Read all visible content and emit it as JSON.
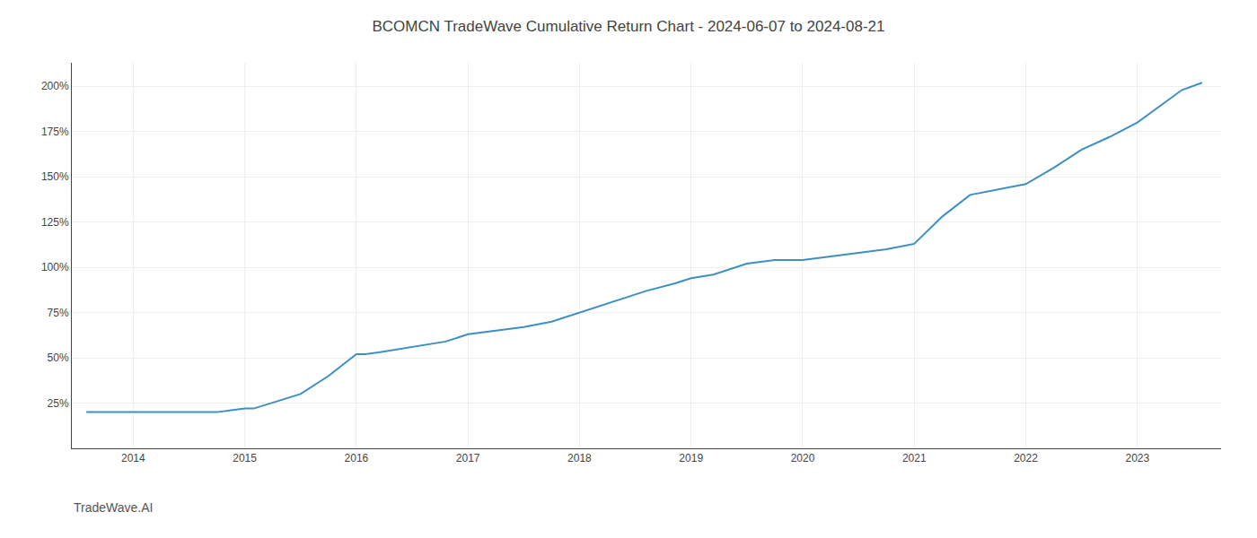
{
  "chart_data": {
    "type": "line",
    "title": "BCOMCN TradeWave Cumulative Return Chart - 2024-06-07 to 2024-08-21",
    "x": [
      2013.58,
      2014.0,
      2014.4,
      2014.75,
      2015.0,
      2015.08,
      2015.5,
      2015.75,
      2016.0,
      2016.08,
      2016.2,
      2016.4,
      2016.6,
      2016.8,
      2017.0,
      2017.25,
      2017.5,
      2017.75,
      2018.0,
      2018.15,
      2018.4,
      2018.6,
      2018.85,
      2019.0,
      2019.2,
      2019.4,
      2019.5,
      2019.75,
      2020.0,
      2020.25,
      2020.5,
      2020.75,
      2021.0,
      2021.25,
      2021.5,
      2021.75,
      2022.0,
      2022.25,
      2022.5,
      2022.75,
      2023.0,
      2023.4,
      2023.58
    ],
    "values": [
      20,
      20,
      20,
      20,
      22,
      22,
      30,
      40,
      52,
      52,
      53,
      55,
      57,
      59,
      63,
      65,
      67,
      70,
      75,
      78,
      83,
      87,
      91,
      94,
      96,
      100,
      102,
      104,
      104,
      106,
      108,
      110,
      113,
      128,
      140,
      143,
      146,
      155,
      165,
      172,
      180,
      198,
      202
    ],
    "color": "#3d8fc4",
    "xlim": [
      2013.45,
      2023.75
    ],
    "ylim": [
      0,
      213
    ],
    "xticks": [
      2014,
      2015,
      2016,
      2017,
      2018,
      2019,
      2020,
      2021,
      2022,
      2023
    ],
    "yticks": [
      {
        "value": 25,
        "label": "25%"
      },
      {
        "value": 50,
        "label": "50%"
      },
      {
        "value": 75,
        "label": "75%"
      },
      {
        "value": 100,
        "label": "100%"
      },
      {
        "value": 125,
        "label": "125%"
      },
      {
        "value": 150,
        "label": "150%"
      },
      {
        "value": 175,
        "label": "175%"
      },
      {
        "value": 200,
        "label": "200%"
      }
    ],
    "grid": true,
    "annotations": [
      {
        "text": "TradeWave.AI"
      }
    ]
  }
}
